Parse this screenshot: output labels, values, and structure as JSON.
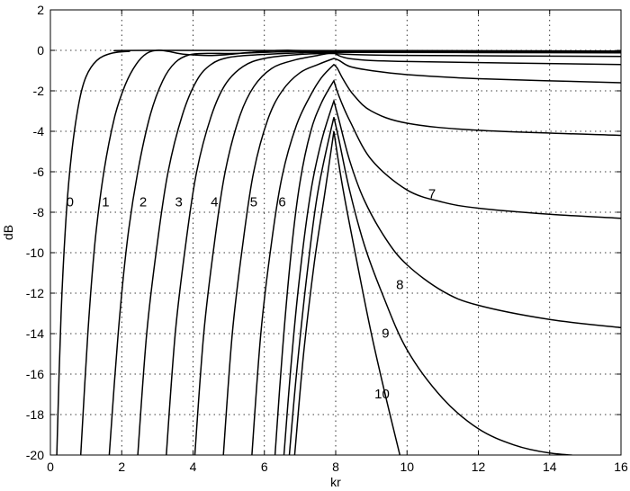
{
  "chart_data": {
    "type": "line",
    "title": "",
    "xlabel": "kr",
    "ylabel": "dB",
    "xlim": [
      0,
      16
    ],
    "ylim": [
      -20,
      2
    ],
    "xticks": [
      0,
      2,
      4,
      6,
      8,
      10,
      12,
      14,
      16
    ],
    "yticks": [
      2,
      0,
      -2,
      -4,
      -6,
      -8,
      -10,
      -12,
      -14,
      -16,
      -18,
      -20
    ],
    "grid": true,
    "legend": "none",
    "series": [
      {
        "name": "0",
        "points": [
          [
            0.18,
            -20
          ],
          [
            0.3,
            -13
          ],
          [
            0.45,
            -8
          ],
          [
            0.6,
            -5
          ],
          [
            0.8,
            -2.6
          ],
          [
            1.0,
            -1.3
          ],
          [
            1.3,
            -0.5
          ],
          [
            1.7,
            -0.15
          ],
          [
            2.2,
            -0.05
          ],
          [
            3.0,
            0
          ],
          [
            16,
            -0.03
          ]
        ]
      },
      {
        "name": "1",
        "points": [
          [
            0.85,
            -20
          ],
          [
            1.05,
            -14
          ],
          [
            1.25,
            -9.5
          ],
          [
            1.5,
            -6
          ],
          [
            1.8,
            -3.3
          ],
          [
            2.1,
            -1.7
          ],
          [
            2.4,
            -0.7
          ],
          [
            2.7,
            -0.15
          ],
          [
            3.0,
            0
          ],
          [
            3.3,
            -0.05
          ],
          [
            3.8,
            -0.2
          ],
          [
            4.6,
            -0.25
          ],
          [
            5.6,
            -0.1
          ],
          [
            6.5,
            0
          ],
          [
            8,
            -0.02
          ],
          [
            16,
            -0.05
          ]
        ]
      },
      {
        "name": "2",
        "points": [
          [
            1.65,
            -20
          ],
          [
            1.9,
            -14
          ],
          [
            2.15,
            -9.5
          ],
          [
            2.45,
            -6
          ],
          [
            2.8,
            -3.2
          ],
          [
            3.15,
            -1.5
          ],
          [
            3.5,
            -0.6
          ],
          [
            3.9,
            -0.22
          ],
          [
            4.4,
            -0.15
          ],
          [
            5.2,
            -0.15
          ],
          [
            6.5,
            -0.07
          ],
          [
            8,
            -0.05
          ],
          [
            16,
            -0.08
          ]
        ]
      },
      {
        "name": "3",
        "points": [
          [
            2.45,
            -20
          ],
          [
            2.7,
            -14
          ],
          [
            3.0,
            -9.5
          ],
          [
            3.3,
            -6
          ],
          [
            3.7,
            -3.2
          ],
          [
            4.1,
            -1.5
          ],
          [
            4.5,
            -0.7
          ],
          [
            5.0,
            -0.35
          ],
          [
            5.8,
            -0.22
          ],
          [
            7.0,
            -0.12
          ],
          [
            8,
            -0.1
          ],
          [
            16,
            -0.12
          ]
        ]
      },
      {
        "name": "4",
        "points": [
          [
            3.25,
            -20
          ],
          [
            3.5,
            -14
          ],
          [
            3.8,
            -9.5
          ],
          [
            4.1,
            -6
          ],
          [
            4.5,
            -3.3
          ],
          [
            4.9,
            -1.7
          ],
          [
            5.4,
            -0.8
          ],
          [
            6.0,
            -0.4
          ],
          [
            7.0,
            -0.2
          ],
          [
            7.95,
            -0.15
          ],
          [
            8.4,
            -0.2
          ],
          [
            10,
            -0.25
          ],
          [
            16,
            -0.3
          ]
        ]
      },
      {
        "name": "5",
        "points": [
          [
            4.05,
            -20
          ],
          [
            4.3,
            -14
          ],
          [
            4.6,
            -9.5
          ],
          [
            4.9,
            -6
          ],
          [
            5.3,
            -3.3
          ],
          [
            5.7,
            -1.8
          ],
          [
            6.2,
            -0.9
          ],
          [
            6.8,
            -0.5
          ],
          [
            7.5,
            -0.25
          ],
          [
            7.95,
            -0.1
          ],
          [
            8.15,
            -0.3
          ],
          [
            8.6,
            -0.45
          ],
          [
            10,
            -0.55
          ],
          [
            16,
            -0.7
          ]
        ]
      },
      {
        "name": "6",
        "points": [
          [
            4.85,
            -20
          ],
          [
            5.1,
            -14
          ],
          [
            5.4,
            -9.5
          ],
          [
            5.7,
            -6
          ],
          [
            6.1,
            -3.4
          ],
          [
            6.5,
            -2
          ],
          [
            7.0,
            -1.1
          ],
          [
            7.5,
            -0.7
          ],
          [
            7.95,
            -0.4
          ],
          [
            8.1,
            -0.5
          ],
          [
            8.4,
            -0.8
          ],
          [
            9,
            -1
          ],
          [
            10,
            -1.2
          ],
          [
            12,
            -1.4
          ],
          [
            16,
            -1.6
          ]
        ]
      },
      {
        "name": "7",
        "points": [
          [
            5.65,
            -20
          ],
          [
            5.9,
            -14
          ],
          [
            6.2,
            -9.5
          ],
          [
            6.5,
            -6.2
          ],
          [
            6.9,
            -3.7
          ],
          [
            7.3,
            -2.2
          ],
          [
            7.6,
            -1.35
          ],
          [
            7.95,
            -0.7
          ],
          [
            8.05,
            -0.9
          ],
          [
            8.2,
            -1.4
          ],
          [
            8.5,
            -2.2
          ],
          [
            9,
            -3
          ],
          [
            10,
            -3.6
          ],
          [
            12,
            -3.95
          ],
          [
            16,
            -4.2
          ]
        ]
      },
      {
        "name": "8",
        "points": [
          [
            6.3,
            -20
          ],
          [
            6.5,
            -15
          ],
          [
            6.75,
            -10
          ],
          [
            7.0,
            -6.5
          ],
          [
            7.3,
            -4
          ],
          [
            7.6,
            -2.6
          ],
          [
            7.95,
            -1.5
          ],
          [
            8.1,
            -2.3
          ],
          [
            8.4,
            -3.5
          ],
          [
            9,
            -5.4
          ],
          [
            10,
            -6.9
          ],
          [
            11,
            -7.5
          ],
          [
            12,
            -7.8
          ],
          [
            14,
            -8.1
          ],
          [
            16,
            -8.3
          ]
        ]
      },
      {
        "name": "9",
        "points": [
          [
            6.55,
            -20
          ],
          [
            6.75,
            -15.5
          ],
          [
            7.0,
            -11
          ],
          [
            7.3,
            -7
          ],
          [
            7.6,
            -4.5
          ],
          [
            7.95,
            -2.5
          ],
          [
            8.1,
            -3.5
          ],
          [
            8.4,
            -5.5
          ],
          [
            8.8,
            -7.4
          ],
          [
            9.4,
            -9.3
          ],
          [
            10,
            -10.6
          ],
          [
            11,
            -11.9
          ],
          [
            12,
            -12.6
          ],
          [
            14,
            -13.3
          ],
          [
            16,
            -13.7
          ]
        ]
      },
      {
        "name": "10",
        "points": [
          [
            6.7,
            -20
          ],
          [
            6.9,
            -16
          ],
          [
            7.2,
            -11
          ],
          [
            7.5,
            -7
          ],
          [
            7.95,
            -3.3
          ],
          [
            8.1,
            -4.5
          ],
          [
            8.4,
            -7
          ],
          [
            8.8,
            -9.6
          ],
          [
            9.3,
            -12
          ],
          [
            10,
            -14.8
          ],
          [
            11,
            -17.2
          ],
          [
            12,
            -18.7
          ],
          [
            13,
            -19.5
          ],
          [
            14,
            -19.9
          ],
          [
            15.4,
            -20.1
          ]
        ]
      },
      {
        "name": "",
        "points": [
          [
            6.85,
            -20
          ],
          [
            7.1,
            -15
          ],
          [
            7.4,
            -10.5
          ],
          [
            7.7,
            -7
          ],
          [
            7.95,
            -4
          ],
          [
            8.2,
            -6.8
          ],
          [
            8.6,
            -10.5
          ],
          [
            9.0,
            -14
          ],
          [
            9.4,
            -17.1
          ],
          [
            9.8,
            -20
          ]
        ]
      }
    ],
    "labels": [
      {
        "text": "0",
        "x": 0.55,
        "y": -7.7
      },
      {
        "text": "1",
        "x": 1.55,
        "y": -7.7
      },
      {
        "text": "2",
        "x": 2.6,
        "y": -7.7
      },
      {
        "text": "3",
        "x": 3.6,
        "y": -7.7
      },
      {
        "text": "4",
        "x": 4.6,
        "y": -7.7
      },
      {
        "text": "5",
        "x": 5.7,
        "y": -7.7
      },
      {
        "text": "6",
        "x": 6.5,
        "y": -7.7
      },
      {
        "text": "7",
        "x": 10.7,
        "y": -7.3
      },
      {
        "text": "8",
        "x": 9.8,
        "y": -11.8
      },
      {
        "text": "9",
        "x": 9.4,
        "y": -14.2
      },
      {
        "text": "10",
        "x": 9.3,
        "y": -17.2
      }
    ]
  }
}
